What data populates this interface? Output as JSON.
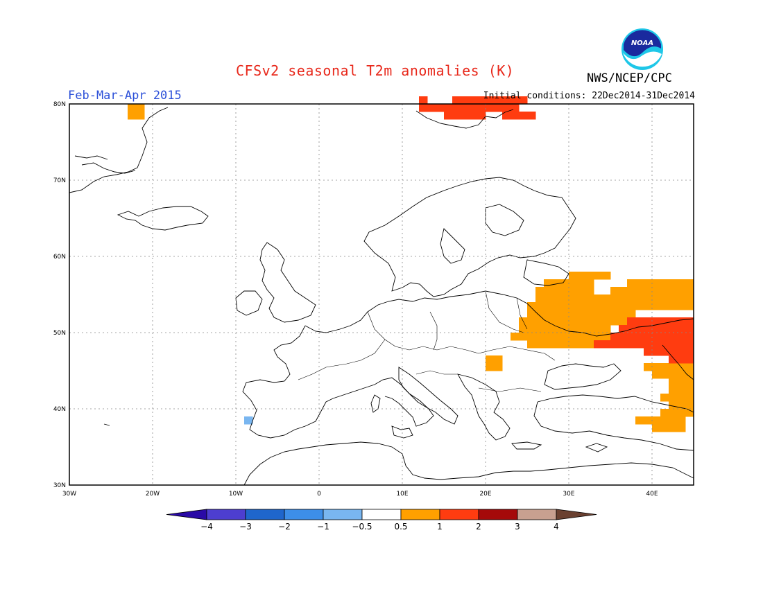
{
  "title": "CFSv2 seasonal T2m anomalies (K)",
  "period": "Feb-Mar-Apr 2015",
  "initial_conditions": "Initial conditions: 22Dec2014-31Dec2014",
  "agency": "NWS/NCEP/CPC",
  "logo_text": "NOAA",
  "map": {
    "lon_range": [
      -30,
      45
    ],
    "lat_range": [
      30,
      80
    ],
    "lon_ticks": [
      "30W",
      "20W",
      "10W",
      "0",
      "10E",
      "20E",
      "30E",
      "40E"
    ],
    "lat_ticks": [
      "30N",
      "40N",
      "50N",
      "60N",
      "70N",
      "80N"
    ],
    "grid": true
  },
  "legend": {
    "labels": [
      "-4",
      "-3",
      "-2",
      "-1",
      "-0.5",
      "0.5",
      "1",
      "2",
      "3",
      "4"
    ],
    "colors": [
      "#2a0aa6",
      "#4d3ed0",
      "#1f66cc",
      "#3d8ee8",
      "#79b6f0",
      "#ffffff",
      "#ffa000",
      "#ff3c10",
      "#a50a0a",
      "#c8a090",
      "#6a4030"
    ]
  },
  "anomaly_regions": [
    {
      "category": "0.5 to 1",
      "color": "#ffa000",
      "cells": [
        [
          -23,
          78
        ],
        [
          -22,
          78
        ],
        [
          -23,
          79
        ],
        [
          -22,
          79
        ],
        [
          20,
          45
        ],
        [
          21,
          45
        ],
        [
          20,
          46
        ],
        [
          21,
          46
        ],
        [
          38,
          38
        ],
        [
          39,
          38
        ],
        [
          40,
          37
        ],
        [
          41,
          37
        ],
        [
          42,
          37
        ],
        [
          43,
          37
        ],
        [
          40,
          38
        ],
        [
          41,
          38
        ],
        [
          42,
          38
        ],
        [
          43,
          38
        ],
        [
          41,
          39
        ],
        [
          42,
          39
        ],
        [
          43,
          39
        ],
        [
          44,
          39
        ],
        [
          42,
          40
        ],
        [
          43,
          40
        ],
        [
          44,
          40
        ],
        [
          41,
          41
        ],
        [
          42,
          41
        ],
        [
          43,
          41
        ],
        [
          44,
          41
        ],
        [
          42,
          42
        ],
        [
          43,
          42
        ],
        [
          44,
          42
        ],
        [
          42,
          43
        ],
        [
          43,
          43
        ],
        [
          44,
          43
        ],
        [
          44,
          44
        ],
        [
          43,
          44
        ],
        [
          42,
          44
        ],
        [
          41,
          44
        ],
        [
          40,
          44
        ],
        [
          39,
          45
        ],
        [
          40,
          45
        ],
        [
          41,
          45
        ],
        [
          42,
          45
        ],
        [
          43,
          45
        ],
        [
          44,
          45
        ],
        [
          25,
          48
        ],
        [
          26,
          48
        ],
        [
          27,
          48
        ],
        [
          28,
          48
        ],
        [
          29,
          48
        ],
        [
          30,
          48
        ],
        [
          31,
          48
        ],
        [
          32,
          48
        ],
        [
          33,
          48
        ],
        [
          34,
          48
        ],
        [
          23,
          49
        ],
        [
          24,
          49
        ],
        [
          25,
          49
        ],
        [
          26,
          49
        ],
        [
          27,
          49
        ],
        [
          28,
          49
        ],
        [
          29,
          49
        ],
        [
          30,
          49
        ],
        [
          31,
          49
        ],
        [
          32,
          49
        ],
        [
          33,
          49
        ],
        [
          34,
          49
        ],
        [
          35,
          49
        ],
        [
          24,
          50
        ],
        [
          25,
          50
        ],
        [
          26,
          50
        ],
        [
          27,
          50
        ],
        [
          28,
          50
        ],
        [
          29,
          50
        ],
        [
          30,
          50
        ],
        [
          31,
          50
        ],
        [
          32,
          50
        ],
        [
          33,
          50
        ],
        [
          34,
          50
        ],
        [
          24,
          51
        ],
        [
          25,
          51
        ],
        [
          26,
          51
        ],
        [
          27,
          51
        ],
        [
          28,
          51
        ],
        [
          29,
          51
        ],
        [
          30,
          51
        ],
        [
          31,
          51
        ],
        [
          32,
          51
        ],
        [
          33,
          51
        ],
        [
          34,
          51
        ],
        [
          35,
          51
        ],
        [
          36,
          51
        ],
        [
          25,
          52
        ],
        [
          26,
          52
        ],
        [
          27,
          52
        ],
        [
          28,
          52
        ],
        [
          29,
          52
        ],
        [
          30,
          52
        ],
        [
          31,
          52
        ],
        [
          32,
          52
        ],
        [
          33,
          52
        ],
        [
          34,
          52
        ],
        [
          35,
          52
        ],
        [
          36,
          52
        ],
        [
          37,
          52
        ],
        [
          25,
          53
        ],
        [
          26,
          53
        ],
        [
          27,
          53
        ],
        [
          28,
          53
        ],
        [
          29,
          53
        ],
        [
          30,
          53
        ],
        [
          31,
          53
        ],
        [
          32,
          53
        ],
        [
          33,
          53
        ],
        [
          34,
          53
        ],
        [
          35,
          53
        ],
        [
          36,
          53
        ],
        [
          37,
          53
        ],
        [
          38,
          53
        ],
        [
          39,
          53
        ],
        [
          40,
          53
        ],
        [
          41,
          53
        ],
        [
          42,
          53
        ],
        [
          43,
          53
        ],
        [
          44,
          53
        ],
        [
          26,
          54
        ],
        [
          27,
          54
        ],
        [
          28,
          54
        ],
        [
          29,
          54
        ],
        [
          30,
          54
        ],
        [
          31,
          54
        ],
        [
          32,
          54
        ],
        [
          33,
          54
        ],
        [
          34,
          54
        ],
        [
          35,
          54
        ],
        [
          36,
          54
        ],
        [
          37,
          54
        ],
        [
          38,
          54
        ],
        [
          39,
          54
        ],
        [
          40,
          54
        ],
        [
          41,
          54
        ],
        [
          42,
          54
        ],
        [
          43,
          54
        ],
        [
          44,
          54
        ],
        [
          26,
          55
        ],
        [
          27,
          55
        ],
        [
          28,
          55
        ],
        [
          29,
          55
        ],
        [
          30,
          55
        ],
        [
          31,
          55
        ],
        [
          32,
          55
        ],
        [
          35,
          55
        ],
        [
          36,
          55
        ],
        [
          37,
          55
        ],
        [
          38,
          55
        ],
        [
          39,
          55
        ],
        [
          40,
          55
        ],
        [
          41,
          55
        ],
        [
          42,
          55
        ],
        [
          43,
          55
        ],
        [
          44,
          55
        ],
        [
          27,
          56
        ],
        [
          28,
          56
        ],
        [
          29,
          56
        ],
        [
          30,
          56
        ],
        [
          31,
          56
        ],
        [
          32,
          56
        ],
        [
          37,
          56
        ],
        [
          38,
          56
        ],
        [
          39,
          56
        ],
        [
          40,
          56
        ],
        [
          41,
          56
        ],
        [
          42,
          56
        ],
        [
          43,
          56
        ],
        [
          44,
          56
        ],
        [
          30,
          57
        ],
        [
          31,
          57
        ],
        [
          32,
          57
        ],
        [
          33,
          57
        ],
        [
          34,
          57
        ]
      ]
    },
    {
      "category": "1 to 2",
      "color": "#ff3c10",
      "cells": [
        [
          12,
          79
        ],
        [
          13,
          79
        ],
        [
          14,
          79
        ],
        [
          15,
          79
        ],
        [
          16,
          79
        ],
        [
          17,
          79
        ],
        [
          18,
          79
        ],
        [
          19,
          79
        ],
        [
          20,
          79
        ],
        [
          21,
          79
        ],
        [
          22,
          79
        ],
        [
          23,
          79
        ],
        [
          12,
          80
        ],
        [
          16,
          80
        ],
        [
          17,
          80
        ],
        [
          18,
          80
        ],
        [
          19,
          80
        ],
        [
          20,
          80
        ],
        [
          21,
          80
        ],
        [
          22,
          80
        ],
        [
          23,
          80
        ],
        [
          24,
          80
        ],
        [
          15,
          78
        ],
        [
          16,
          78
        ],
        [
          17,
          78
        ],
        [
          18,
          78
        ],
        [
          19,
          78
        ],
        [
          22,
          78
        ],
        [
          23,
          78
        ],
        [
          24,
          78
        ],
        [
          25,
          78
        ],
        [
          33,
          48
        ],
        [
          34,
          48
        ],
        [
          35,
          48
        ],
        [
          36,
          48
        ],
        [
          37,
          48
        ],
        [
          38,
          48
        ],
        [
          39,
          48
        ],
        [
          40,
          48
        ],
        [
          41,
          48
        ],
        [
          42,
          48
        ],
        [
          43,
          48
        ],
        [
          44,
          48
        ],
        [
          35,
          49
        ],
        [
          36,
          49
        ],
        [
          37,
          49
        ],
        [
          38,
          49
        ],
        [
          39,
          49
        ],
        [
          40,
          49
        ],
        [
          41,
          49
        ],
        [
          42,
          49
        ],
        [
          43,
          49
        ],
        [
          44,
          49
        ],
        [
          36,
          50
        ],
        [
          37,
          50
        ],
        [
          38,
          50
        ],
        [
          39,
          50
        ],
        [
          40,
          50
        ],
        [
          41,
          50
        ],
        [
          42,
          50
        ],
        [
          43,
          50
        ],
        [
          44,
          50
        ],
        [
          37,
          51
        ],
        [
          38,
          51
        ],
        [
          39,
          51
        ],
        [
          40,
          51
        ],
        [
          41,
          51
        ],
        [
          42,
          51
        ],
        [
          43,
          51
        ],
        [
          44,
          51
        ],
        [
          39,
          47
        ],
        [
          40,
          47
        ],
        [
          41,
          47
        ],
        [
          42,
          47
        ],
        [
          43,
          47
        ],
        [
          44,
          47
        ],
        [
          42,
          46
        ],
        [
          43,
          46
        ],
        [
          44,
          46
        ]
      ]
    },
    {
      "category": "-1 to -0.5",
      "color": "#79b6f0",
      "cells": [
        [
          -9,
          38
        ]
      ]
    }
  ]
}
